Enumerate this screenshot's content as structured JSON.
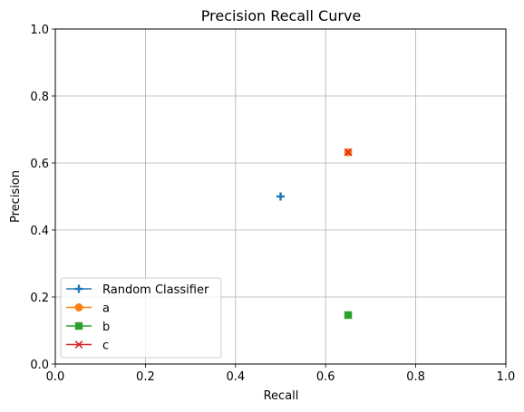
{
  "chart_data": {
    "type": "scatter",
    "title": "Precision Recall Curve",
    "xlabel": "Recall",
    "ylabel": "Precision",
    "xlim": [
      0,
      1
    ],
    "ylim": [
      0,
      1
    ],
    "xticks": [
      "0.0",
      "0.2",
      "0.4",
      "0.6",
      "0.8",
      "1.0"
    ],
    "yticks": [
      "0.0",
      "0.2",
      "0.4",
      "0.6",
      "0.8",
      "1.0"
    ],
    "grid": true,
    "legend_position": "lower-left",
    "series": [
      {
        "name": "Random Classifier",
        "marker": "plus",
        "color": "#1f77b4",
        "x": [
          0.5
        ],
        "y": [
          0.5
        ]
      },
      {
        "name": "a",
        "marker": "circle",
        "color": "#ff7f0e",
        "x": [
          0.65
        ],
        "y": [
          0.632
        ]
      },
      {
        "name": "b",
        "marker": "square",
        "color": "#2ca02c",
        "x": [
          0.65
        ],
        "y": [
          0.146
        ]
      },
      {
        "name": "c",
        "marker": "x",
        "color": "#d62728",
        "x": [
          0.65
        ],
        "y": [
          0.632
        ]
      }
    ]
  }
}
